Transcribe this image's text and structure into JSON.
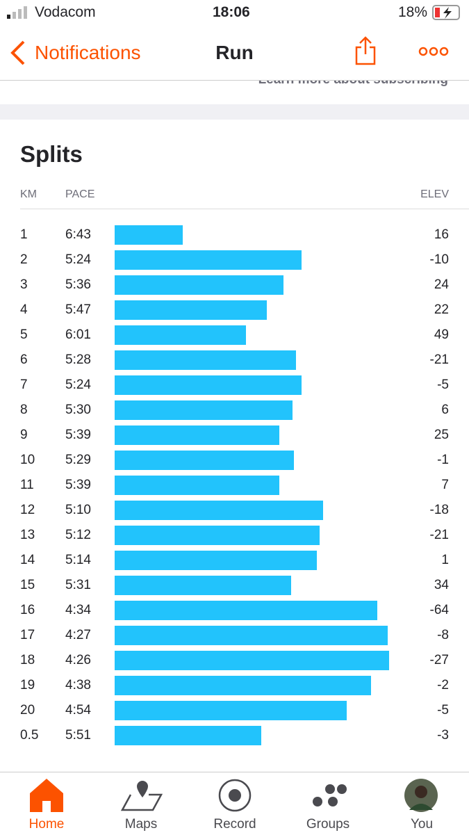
{
  "status_bar": {
    "carrier": "Vodacom",
    "time": "18:06",
    "battery": "18%"
  },
  "nav": {
    "back": "Notifications",
    "title": "Run"
  },
  "banner": {
    "text": "Learn more about subscribing"
  },
  "splits": {
    "title": "Splits",
    "headers": {
      "km": "KM",
      "pace": "PACE",
      "elev": "ELEV"
    },
    "rows": [
      {
        "km": "1",
        "pace": "6:43",
        "elev": "16"
      },
      {
        "km": "2",
        "pace": "5:24",
        "elev": "-10"
      },
      {
        "km": "3",
        "pace": "5:36",
        "elev": "24"
      },
      {
        "km": "4",
        "pace": "5:47",
        "elev": "22"
      },
      {
        "km": "5",
        "pace": "6:01",
        "elev": "49"
      },
      {
        "km": "6",
        "pace": "5:28",
        "elev": "-21"
      },
      {
        "km": "7",
        "pace": "5:24",
        "elev": "-5"
      },
      {
        "km": "8",
        "pace": "5:30",
        "elev": "6"
      },
      {
        "km": "9",
        "pace": "5:39",
        "elev": "25"
      },
      {
        "km": "10",
        "pace": "5:29",
        "elev": "-1"
      },
      {
        "km": "11",
        "pace": "5:39",
        "elev": "7"
      },
      {
        "km": "12",
        "pace": "5:10",
        "elev": "-18"
      },
      {
        "km": "13",
        "pace": "5:12",
        "elev": "-21"
      },
      {
        "km": "14",
        "pace": "5:14",
        "elev": "1"
      },
      {
        "km": "15",
        "pace": "5:31",
        "elev": "34"
      },
      {
        "km": "16",
        "pace": "4:34",
        "elev": "-64"
      },
      {
        "km": "17",
        "pace": "4:27",
        "elev": "-8"
      },
      {
        "km": "18",
        "pace": "4:26",
        "elev": "-27"
      },
      {
        "km": "19",
        "pace": "4:38",
        "elev": "-2"
      },
      {
        "km": "20",
        "pace": "4:54",
        "elev": "-5"
      },
      {
        "km": "0.5",
        "pace": "5:51",
        "elev": "-3"
      }
    ]
  },
  "tabs": [
    "Home",
    "Maps",
    "Record",
    "Groups",
    "You"
  ]
}
